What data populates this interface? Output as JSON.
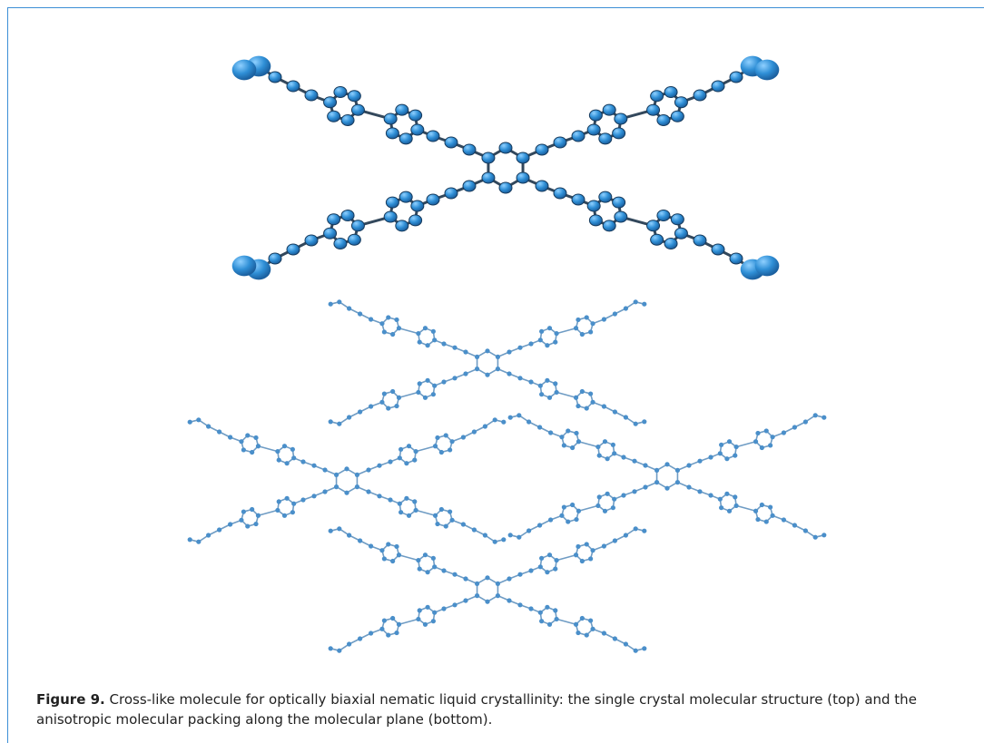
{
  "figure": {
    "label": "Figure 9.",
    "caption": "Cross-like molecule for optically biaxial nematic liquid crystallinity: the single crystal molecular structure (top) and the anisotropic molecular packing along the molecular plane (bottom)."
  }
}
